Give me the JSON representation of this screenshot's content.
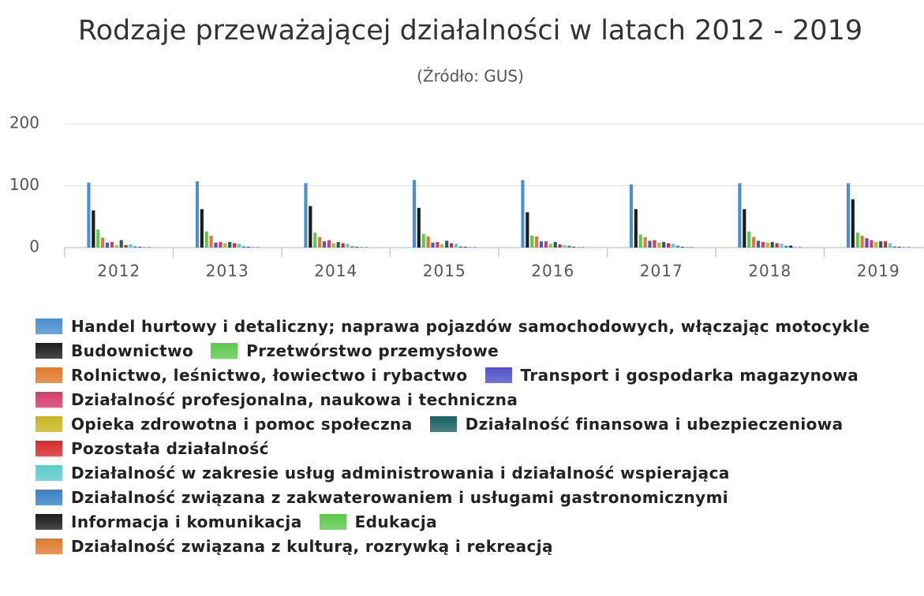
{
  "chart_data": {
    "type": "bar",
    "title": "Rodzaje przeważającej działalności w latach 2012 - 2019",
    "subtitle": "(Źródło: GUS)",
    "categories": [
      "2012",
      "2013",
      "2014",
      "2015",
      "2016",
      "2017",
      "2018",
      "2019"
    ],
    "ylim": [
      0,
      200
    ],
    "yticks": [
      0,
      100,
      200
    ],
    "grid": true,
    "series": [
      {
        "name": "Handel hurtowy i detaliczny; naprawa pojazdów samochodowych, włączając motocykle",
        "color": "#4a8fd0",
        "values": [
          105,
          107,
          104,
          109,
          109,
          102,
          104,
          104
        ]
      },
      {
        "name": "Budownictwo",
        "color": "#1c1c1c",
        "values": [
          60,
          62,
          67,
          64,
          57,
          62,
          62,
          78
        ]
      },
      {
        "name": "Przetwórstwo przemysłowe",
        "color": "#5cc94c",
        "values": [
          29,
          26,
          24,
          22,
          19,
          21,
          26,
          24
        ]
      },
      {
        "name": "Rolnictwo, leśnictwo, łowiectwo i rybactwo",
        "color": "#e07b2e",
        "values": [
          16,
          19,
          17,
          18,
          18,
          17,
          17,
          19
        ]
      },
      {
        "name": "Transport i gospodarka magazynowa",
        "color": "#5252c8",
        "values": [
          8,
          8,
          10,
          8,
          10,
          11,
          11,
          15
        ]
      },
      {
        "name": "Działalność profesjonalna, naukowa i techniczna",
        "color": "#d63a6a",
        "values": [
          9,
          9,
          12,
          9,
          10,
          12,
          9,
          12
        ]
      },
      {
        "name": "Opieka zdrowotna i pomoc społeczna",
        "color": "#c8b420",
        "values": [
          4,
          7,
          7,
          5,
          6,
          8,
          8,
          9
        ]
      },
      {
        "name": "Działalność finansowa i ubezpieczeniowa",
        "color": "#1a6262",
        "values": [
          12,
          9,
          9,
          11,
          9,
          9,
          9,
          10
        ]
      },
      {
        "name": "Pozostała działalność",
        "color": "#d62a2a",
        "values": [
          4,
          7,
          7,
          7,
          5,
          7,
          7,
          10
        ]
      },
      {
        "name": "Działalność w zakresie usług administrowania i działalność wspierająca",
        "color": "#5ccccc",
        "values": [
          5,
          6,
          6,
          6,
          4,
          6,
          6,
          7
        ]
      },
      {
        "name": "Działalność związana z zakwaterowaniem i usługami gastronomicznymi",
        "color": "#3a80c8",
        "values": [
          2,
          2,
          2,
          2,
          3,
          3,
          3,
          2
        ]
      },
      {
        "name": "Informacja i komunikacja",
        "color": "#1c1c1c",
        "values": [
          1,
          1,
          1,
          1,
          1,
          1,
          3,
          1
        ]
      },
      {
        "name": "Edukacja",
        "color": "#5cc94c",
        "values": [
          1,
          1,
          1,
          1,
          1,
          1,
          1,
          1
        ]
      },
      {
        "name": "Działalność związana z kulturą, rozrywką i rekreacją",
        "color": "#e07b2e",
        "values": [
          1,
          1,
          1,
          1,
          1,
          1,
          1,
          1
        ]
      }
    ]
  }
}
